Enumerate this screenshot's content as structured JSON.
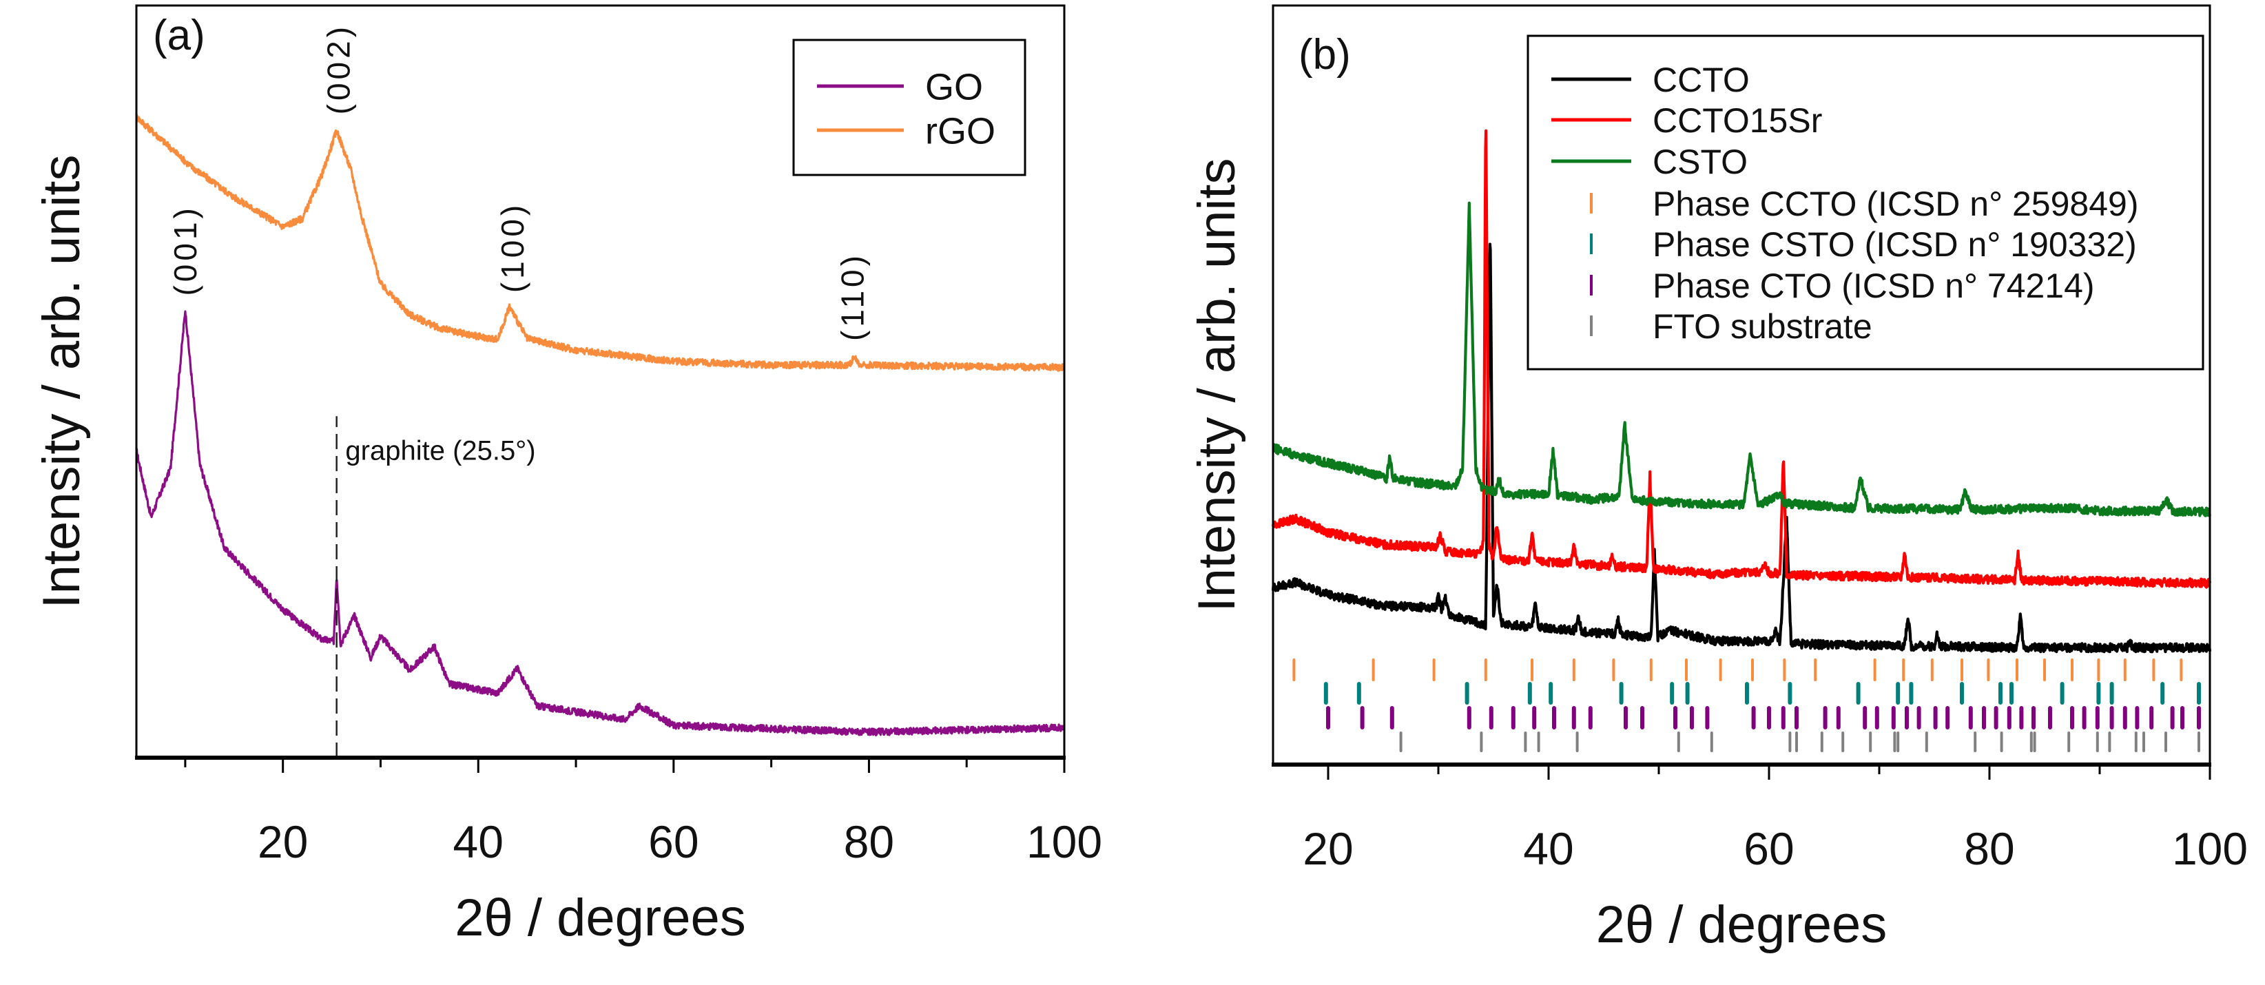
{
  "chart_data": [
    {
      "panel_label": "(a)",
      "type": "line",
      "xlabel": "2θ / degrees",
      "ylabel": "Intensity / arb. units",
      "xlim": [
        5,
        100
      ],
      "ylim": [
        0,
        100
      ],
      "xticks": [
        20,
        40,
        60,
        80,
        100
      ],
      "xtick_labels": [
        "20",
        "40",
        "60",
        "80",
        "100"
      ],
      "minor_xticks": [
        10,
        30,
        50,
        70,
        90
      ],
      "grid": false,
      "legend_position": "top-right",
      "series": [
        {
          "name": "GO",
          "color": "#8c0d86",
          "x": [
            5,
            6.5,
            8.5,
            10,
            11.5,
            14,
            17,
            20,
            24,
            25.2,
            25.5,
            25.9,
            27.3,
            29,
            30,
            33,
            35.5,
            37,
            42,
            44,
            46,
            55,
            56.5,
            60,
            80,
            100
          ],
          "y": [
            40.8,
            32.0,
            38.5,
            59.5,
            39.0,
            27.9,
            23.8,
            19.7,
            15.7,
            15.5,
            24.4,
            15.1,
            18.9,
            13.3,
            16.2,
            11.6,
            14.8,
            9.8,
            8.6,
            11.9,
            6.9,
            5.1,
            6.9,
            4.3,
            3.4,
            4.0
          ]
        },
        {
          "name": "rGO",
          "color": "#f98b3c",
          "x": [
            5,
            10.5,
            15,
            20,
            22,
            24,
            25.5,
            27,
            28,
            30,
            33,
            36,
            40,
            42,
            43.2,
            45,
            50,
            60,
            70,
            78,
            78.5,
            79,
            80,
            90,
            100
          ],
          "y": [
            85.2,
            78.7,
            74.5,
            70.6,
            71.7,
            77.5,
            83.4,
            78.0,
            72.3,
            63.0,
            58.9,
            57.1,
            56.0,
            55.6,
            60.0,
            55.7,
            54.2,
            52.7,
            52.2,
            52.2,
            53.3,
            52.2,
            52.2,
            52.0,
            51.9
          ]
        }
      ],
      "annotations": [
        {
          "text": "(002)",
          "x": 25.7,
          "y": 85.5,
          "rotated": true
        },
        {
          "text": "(001)",
          "x": 10.0,
          "y": 61.4,
          "rotated": true
        },
        {
          "text": "(100)",
          "x": 43.5,
          "y": 61.8,
          "rotated": true
        },
        {
          "text": "(110)",
          "x": 78.3,
          "y": 55.4,
          "rotated": true
        },
        {
          "text": "graphite (25.5°)",
          "x": 26.4,
          "y": 39.6,
          "rotated": false
        }
      ],
      "reference_lines": [
        {
          "x": 25.5,
          "y_top": 45.4,
          "style": "dashed"
        }
      ]
    },
    {
      "panel_label": "(b)",
      "type": "line",
      "xlabel": "2θ / degrees",
      "ylabel": "Intensity / arb. units",
      "xlim": [
        15,
        100
      ],
      "ylim": [
        0,
        100
      ],
      "xticks": [
        20,
        40,
        60,
        80,
        100
      ],
      "xtick_labels": [
        "20",
        "40",
        "60",
        "80",
        "100"
      ],
      "minor_xticks": [
        30,
        50,
        70,
        90
      ],
      "grid": false,
      "legend_position": "top-right",
      "series": [
        {
          "name": "CCTO",
          "color": "#000000",
          "x": [
            15,
            17,
            20,
            25,
            29.8,
            30.0,
            30.3,
            30.6,
            31.0,
            34.3,
            34.7,
            35.0,
            35.3,
            35.7,
            38.5,
            38.8,
            39.1,
            42.4,
            42.7,
            43.0,
            46.0,
            46.3,
            46.6,
            49.3,
            49.6,
            49.9,
            51,
            55,
            60.3,
            60.6,
            61.0,
            61.6,
            62.0,
            72.3,
            72.6,
            72.9,
            75.0,
            75.2,
            75.5,
            82.5,
            82.8,
            83.1,
            92.5,
            92.7,
            93,
            100
          ],
          "y": [
            23.3,
            24.0,
            22.4,
            20.9,
            20.7,
            22.1,
            20.4,
            22.2,
            19.7,
            18.4,
            71.1,
            19.1,
            23.9,
            18.6,
            18.1,
            21.3,
            18.0,
            17.7,
            19.3,
            17.5,
            17.2,
            19.1,
            17.1,
            16.8,
            28.4,
            16.8,
            17.7,
            16.3,
            16.2,
            17.7,
            15.9,
            32.4,
            15.9,
            15.6,
            19.7,
            15.6,
            15.6,
            17.4,
            15.6,
            15.4,
            19.7,
            15.4,
            15.4,
            16.3,
            15.4,
            15.4
          ]
        },
        {
          "name": "CCTO15Sr",
          "color": "#ff0000",
          "x": [
            15,
            17,
            20,
            25,
            29.8,
            30.2,
            30.6,
            33.8,
            34.1,
            34.3,
            34.6,
            35.0,
            35.3,
            35.7,
            38.2,
            38.5,
            38.8,
            42.0,
            42.3,
            42.6,
            45.5,
            45.8,
            46.1,
            48.9,
            49.2,
            49.5,
            55,
            59.3,
            59.6,
            60.0,
            61.0,
            61.3,
            61.6,
            72.0,
            72.3,
            72.6,
            82.3,
            82.6,
            82.9,
            100
          ],
          "y": [
            31.5,
            32.4,
            30.6,
            29.0,
            28.6,
            30.2,
            28.1,
            27.7,
            29.9,
            87.0,
            29.0,
            27.0,
            32.0,
            27.0,
            26.8,
            30.7,
            26.8,
            26.5,
            28.8,
            26.5,
            26.1,
            27.5,
            26.1,
            25.9,
            38.1,
            25.9,
            25.1,
            25.4,
            26.5,
            25.2,
            25.2,
            40.8,
            25.0,
            24.7,
            27.9,
            24.7,
            24.3,
            27.9,
            24.3,
            23.9
          ]
        },
        {
          "name": "CSTO",
          "color": "#0b7a1c",
          "x": [
            15,
            17,
            20,
            23,
            25.3,
            25.6,
            25.9,
            28,
            31.5,
            32.2,
            32.8,
            33.4,
            34,
            35.2,
            35.5,
            35.9,
            40,
            40.4,
            40.8,
            44,
            46.4,
            46.9,
            47.6,
            52,
            57.7,
            58.3,
            59,
            61,
            61.4,
            67.8,
            68.3,
            69,
            77.3,
            77.8,
            78.4,
            87,
            90,
            95.5,
            96,
            96.6,
            100
          ],
          "y": [
            41.7,
            40.8,
            39.7,
            38.7,
            37.7,
            40.8,
            37.7,
            37.2,
            36.6,
            39.0,
            73.5,
            39.0,
            36.3,
            36.0,
            37.8,
            35.6,
            35.6,
            41.5,
            35.6,
            34.9,
            35.4,
            44.9,
            34.9,
            34.5,
            34.2,
            40.8,
            34.2,
            35.4,
            34.4,
            33.8,
            37.8,
            33.8,
            33.6,
            36.0,
            33.6,
            33.8,
            33.4,
            33.4,
            35.1,
            33.4,
            33.3
          ]
        }
      ],
      "reference_phases": [
        {
          "name": "Phase CCTO (ICSD n° 259849)",
          "color": "#f98b3c",
          "positions": [
            16.9,
            24.1,
            29.6,
            34.3,
            38.5,
            42.3,
            45.9,
            49.3,
            52.5,
            55.6,
            58.5,
            61.4,
            64.2,
            69.6,
            72.2,
            74.8,
            77.5,
            79.9,
            82.5,
            85.0,
            87.5,
            89.9,
            92.3,
            94.9,
            97.4
          ]
        },
        {
          "name": "Phase CSTO (ICSD n° 190332)",
          "color": "#00807a",
          "positions": [
            19.8,
            22.8,
            32.6,
            38.3,
            40.2,
            46.6,
            51.2,
            52.6,
            58.0,
            61.9,
            68.1,
            71.7,
            72.9,
            77.5,
            81.0,
            82.0,
            86.6,
            89.9,
            91.1,
            95.7,
            99.0
          ]
        },
        {
          "name": "Phase CTO (ICSD n° 74214)",
          "color": "#800080",
          "positions": [
            20.0,
            23.1,
            25.8,
            32.8,
            34.8,
            36.8,
            38.7,
            40.5,
            42.3,
            43.8,
            47.0,
            48.5,
            51.5,
            53.0,
            54.4,
            58.6,
            60.0,
            61.3,
            62.5,
            65.1,
            66.3,
            68.7,
            69.8,
            71.3,
            72.5,
            73.6,
            75.1,
            76.2,
            78.3,
            79.5,
            80.6,
            81.8,
            82.9,
            84.0,
            85.5,
            87.5,
            88.6,
            89.8,
            91.1,
            92.3,
            93.4,
            94.7,
            96.6,
            97.5,
            99.0
          ]
        },
        {
          "name": "FTO substrate",
          "color": "#808080",
          "positions": [
            26.6,
            33.9,
            37.9,
            39.1,
            42.6,
            51.8,
            54.8,
            61.9,
            62.5,
            64.8,
            66.7,
            69.2,
            71.4,
            71.7,
            74.3,
            78.7,
            81.1,
            83.8,
            84.1,
            87.2,
            89.8,
            90.9,
            93.3,
            94.0,
            96.0,
            99.0
          ]
        }
      ]
    }
  ]
}
